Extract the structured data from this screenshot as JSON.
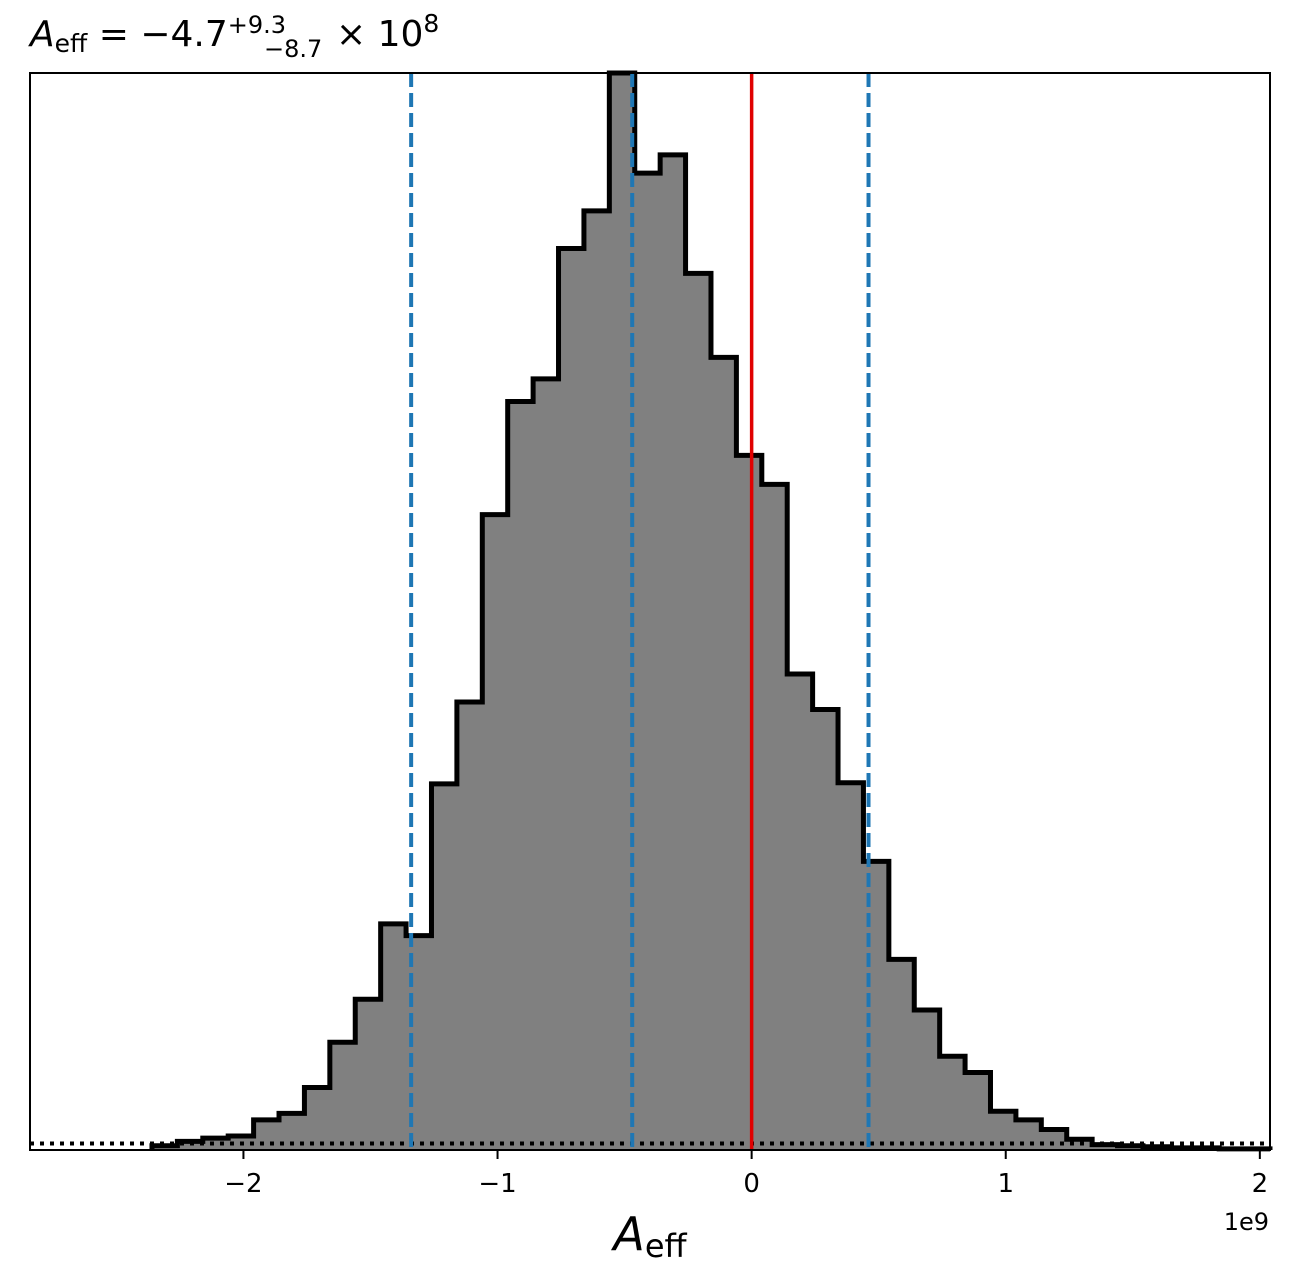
{
  "chart_data": {
    "type": "histogram",
    "title": {
      "symbol": "A",
      "symbol_subscript": "eff",
      "relation": " = −4.7",
      "upper_error": "+9.3",
      "lower_error": "−8.7",
      "times": " × 10",
      "exponent": "8"
    },
    "xlabel": {
      "symbol": "A",
      "subscript": "eff"
    },
    "x_offset_label": "1e9",
    "xlim": [
      -2.84,
      2.04
    ],
    "ylim": [
      0,
      1.0
    ],
    "xticks": [
      {
        "value": -2,
        "label": "−2"
      },
      {
        "value": -1,
        "label": "−1"
      },
      {
        "value": 0,
        "label": "0"
      },
      {
        "value": 1,
        "label": "1"
      },
      {
        "value": 2,
        "label": "2"
      }
    ],
    "bin_edges": [
      -2.36,
      -2.26,
      -2.16,
      -2.06,
      -1.96,
      -1.86,
      -1.76,
      -1.66,
      -1.56,
      -1.46,
      -1.36,
      -1.26,
      -1.16,
      -1.06,
      -0.96,
      -0.86,
      -0.76,
      -0.66,
      -0.56,
      -0.46,
      -0.36,
      -0.26,
      -0.16,
      -0.06,
      0.04,
      0.14,
      0.24,
      0.34,
      0.44,
      0.54,
      0.64,
      0.74,
      0.84,
      0.94,
      1.04,
      1.14,
      1.24,
      1.34,
      1.44,
      1.54,
      1.64,
      1.74,
      1.84,
      1.94,
      2.04
    ],
    "counts": [
      0.004,
      0.008,
      0.011,
      0.013,
      0.028,
      0.034,
      0.058,
      0.1,
      0.14,
      0.21,
      0.199,
      0.34,
      0.416,
      0.59,
      0.695,
      0.716,
      0.837,
      0.872,
      1.0,
      0.907,
      0.924,
      0.814,
      0.736,
      0.645,
      0.618,
      0.442,
      0.409,
      0.341,
      0.268,
      0.177,
      0.13,
      0.087,
      0.072,
      0.036,
      0.028,
      0.019,
      0.01,
      0.005,
      0.004,
      0.003,
      0.002,
      0.002,
      0.001,
      0.001
    ],
    "hist_fill": "#808080",
    "hist_edge": "#000000",
    "median": -0.47,
    "quantiles": [
      -1.34,
      -0.47,
      0.46
    ],
    "quantile_color": "#1f77b4",
    "truth": 0.0,
    "truth_color": "#e00000",
    "reference_level": 0.006
  }
}
